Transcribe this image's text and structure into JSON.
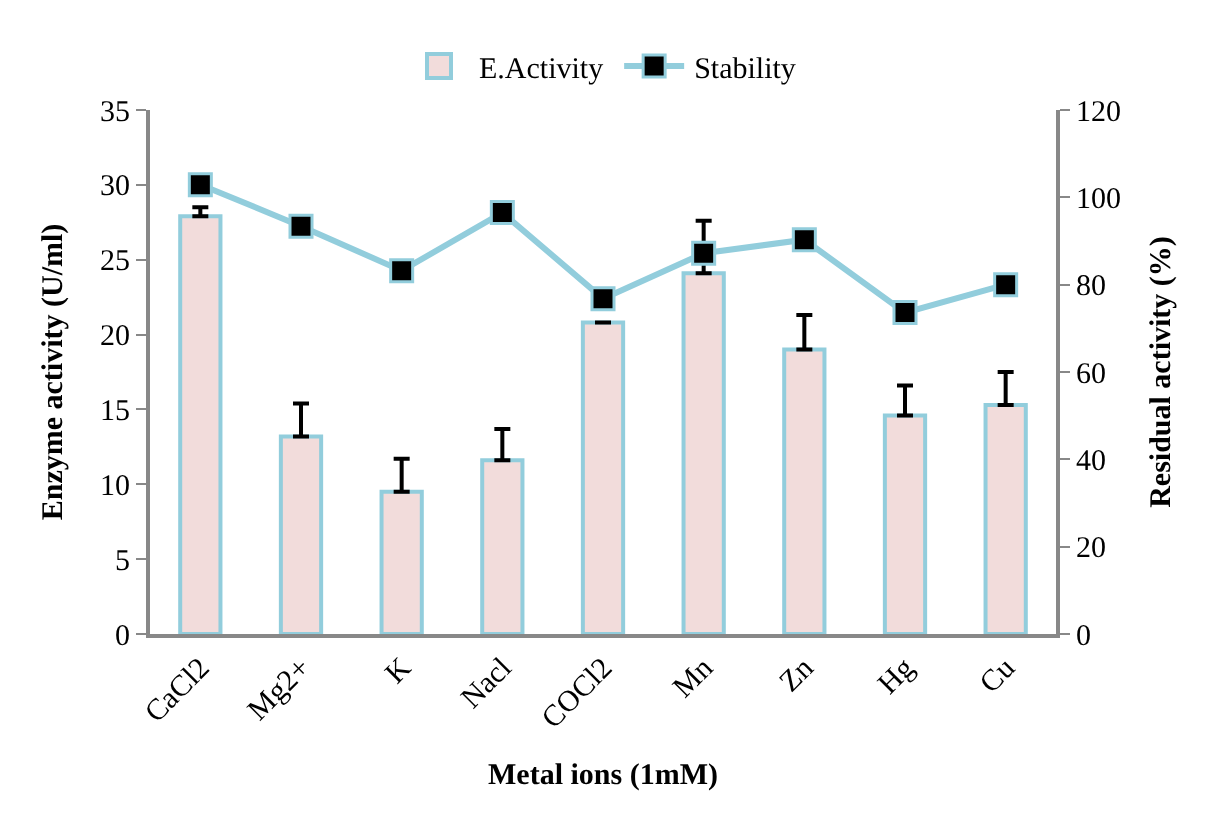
{
  "chart_data": {
    "type": "bar",
    "xlabel": "Metal ions (1mM)",
    "ylabel": "Enzyme activity (U/ml)",
    "y2label": "Residual activity (%)",
    "categories": [
      "CaCl2",
      "Mg2+",
      "K",
      "Nacl",
      "COCl2",
      "Mn",
      "Zn",
      "Hg",
      "Cu"
    ],
    "series": [
      {
        "name": "E.Activity",
        "color": "#f2dcdb",
        "values": [
          27.9,
          13.2,
          9.5,
          11.6,
          20.8,
          24.1,
          19.0,
          14.6,
          15.3
        ],
        "errors": [
          [
            27.9,
            28.5
          ],
          [
            13.2,
            15.4
          ],
          [
            9.5,
            11.7
          ],
          [
            11.6,
            13.7
          ],
          null,
          [
            24.1,
            27.6
          ],
          [
            19.0,
            21.3
          ],
          [
            14.6,
            16.6
          ],
          [
            15.3,
            17.5
          ]
        ]
      },
      {
        "name": "Stability",
        "type": "line",
        "axis": "y2",
        "color": "#92cddc",
        "marker": "square",
        "values": [
          102.9,
          93.4,
          83.2,
          96.5,
          76.8,
          87.2,
          90.3,
          73.6,
          80.0
        ]
      }
    ],
    "ylim": [
      0,
      35
    ],
    "yticks": [
      0,
      5,
      10,
      15,
      20,
      25,
      30,
      35
    ],
    "y2lim": [
      0,
      120
    ],
    "y2ticks": [
      0,
      20,
      40,
      60,
      80,
      100,
      120
    ],
    "legend": "top"
  }
}
